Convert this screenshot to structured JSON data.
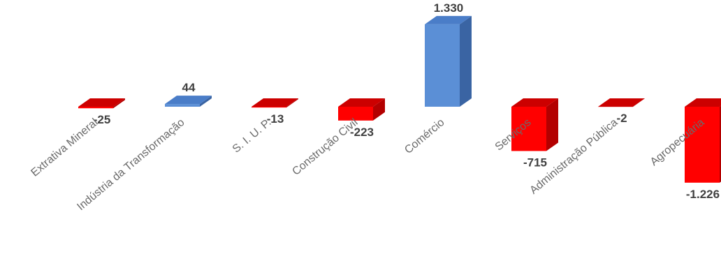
{
  "chart_data": {
    "type": "bar",
    "style": "3d-column",
    "categories": [
      "Extrativa Mineral",
      "Indústria da Transformação",
      "S. I. U. P.",
      "Construção Civil",
      "Comércio",
      "Serviços",
      "Administração Pública",
      "Agropecuária"
    ],
    "values": [
      -25,
      44,
      -13,
      -223,
      1330,
      -715,
      -2,
      -1226
    ],
    "value_labels": [
      "-25",
      "44",
      "-13",
      "-223",
      "1.330",
      "-715",
      "-2",
      "-1.226"
    ],
    "title": "",
    "xlabel": "",
    "ylabel": "",
    "legend": "none",
    "grid": false,
    "colors": {
      "positive": "#5b8fd6",
      "positive_side": "#3a64a3",
      "positive_top": "#4a7dc8",
      "negative": "#ff0000",
      "negative_side": "#b30000",
      "negative_top": "#cc0000"
    }
  }
}
